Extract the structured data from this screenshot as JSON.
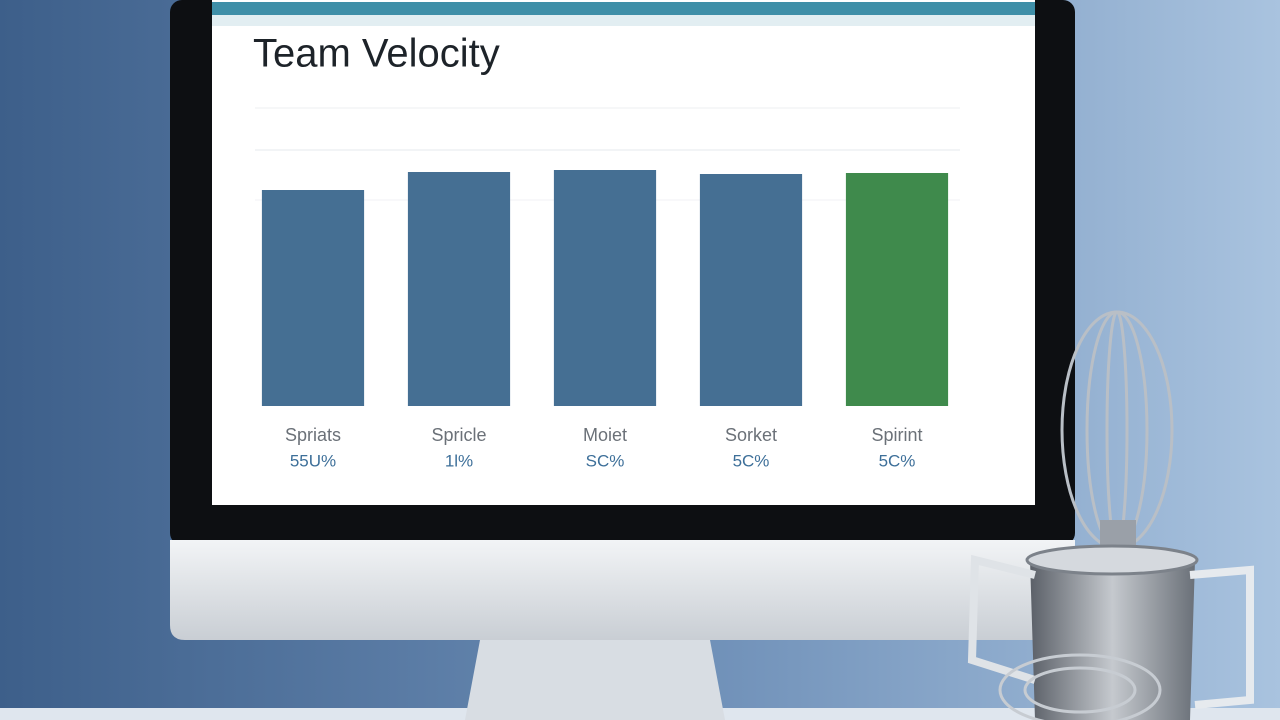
{
  "chart_data": {
    "type": "bar",
    "title": "Team Velocity",
    "categories": [
      "Spriats",
      "Spricle",
      "Moiet",
      "Sorket",
      "Spirint"
    ],
    "category_notes": [
      "55U%",
      "1l%",
      "SC%",
      "5C%",
      "5C%"
    ],
    "values": [
      216,
      234,
      236,
      232,
      233
    ],
    "colors": [
      "#456f93",
      "#456f93",
      "#456f93",
      "#456f93",
      "#3f8a4c"
    ],
    "ylim": [
      0,
      300
    ]
  }
}
